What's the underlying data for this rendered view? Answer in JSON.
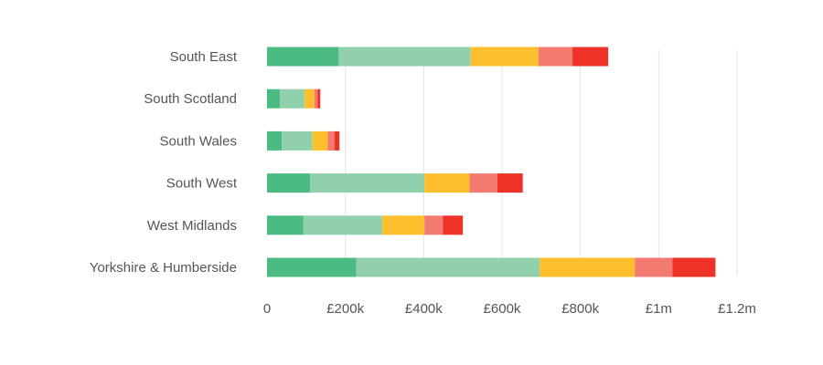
{
  "chart_data": {
    "type": "bar",
    "orientation": "horizontal",
    "stacked": true,
    "categories": [
      "South East",
      "South Scotland",
      "South Wales",
      "South West",
      "West Midlands",
      "Yorkshire & Humberside"
    ],
    "series": [
      {
        "color": "#4cbb81",
        "values": [
          183000,
          33000,
          38000,
          110000,
          93000,
          228000
        ]
      },
      {
        "color": "#90d0ac",
        "values": [
          337000,
          63000,
          78000,
          292000,
          201000,
          468000
        ]
      },
      {
        "color": "#fdbf2d",
        "values": [
          173000,
          25000,
          39000,
          115000,
          108000,
          243000
        ]
      },
      {
        "color": "#f37a71",
        "values": [
          87000,
          8000,
          17000,
          71000,
          47000,
          96000
        ]
      },
      {
        "color": "#ee3228",
        "values": [
          91000,
          7000,
          13000,
          65000,
          51000,
          110000
        ]
      }
    ],
    "xlim": [
      0,
      1200000
    ],
    "ticks": [
      0,
      200000,
      400000,
      600000,
      800000,
      1000000,
      1200000
    ],
    "tick_labels": [
      "0",
      "£200k",
      "£400k",
      "£600k",
      "£800k",
      "£1m",
      "£1.2m"
    ],
    "grid": "vertical",
    "title": "",
    "xlabel": "",
    "ylabel": ""
  }
}
